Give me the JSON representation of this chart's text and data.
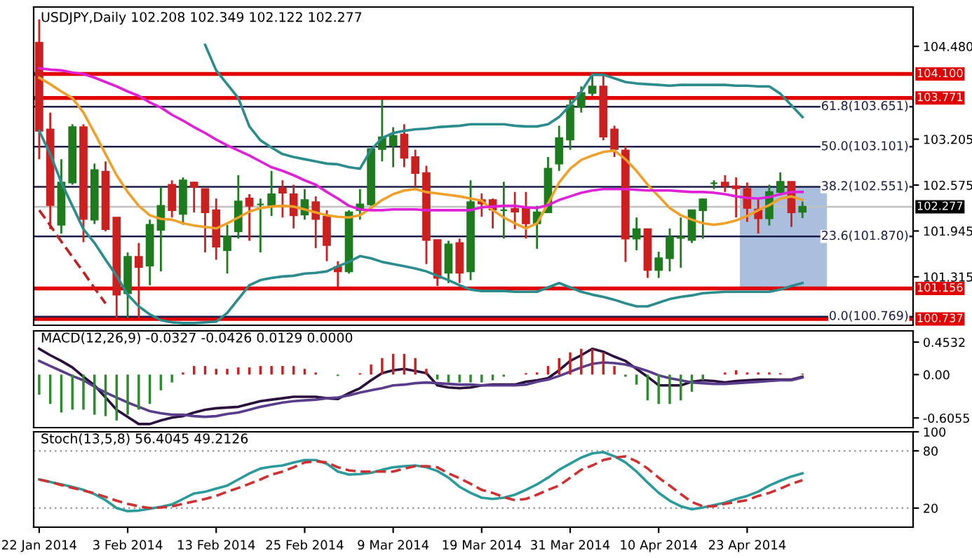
{
  "chart_data": [
    {
      "type": "candlestick",
      "title": "USDJPY,Daily 102.208 102.349 102.122 102.277",
      "categories": [
        null,
        null,
        null,
        null,
        null,
        null,
        null,
        null,
        null,
        null,
        null,
        null,
        null,
        null,
        null,
        null,
        null,
        null,
        null,
        null,
        null,
        null,
        null,
        null,
        null,
        null,
        null,
        null,
        null,
        null,
        null,
        null,
        null,
        null,
        null,
        null,
        null,
        null,
        null,
        null,
        null,
        null,
        null,
        null,
        null,
        null,
        null,
        null,
        null,
        null,
        null,
        null,
        null,
        null,
        null,
        null,
        null,
        null,
        null,
        null,
        null,
        null,
        null,
        null,
        null,
        null,
        null,
        null,
        null,
        null
      ],
      "ohlc": [
        [
          104.53,
          104.85,
          102.93,
          103.32
        ],
        [
          103.34,
          103.57,
          101.97,
          102.3
        ],
        [
          102.03,
          102.93,
          101.91,
          102.61
        ],
        [
          102.61,
          103.41,
          102.58,
          103.37
        ],
        [
          103.37,
          103.41,
          101.79,
          102.11
        ],
        [
          102.1,
          102.87,
          102.04,
          102.78
        ],
        [
          102.76,
          102.9,
          101.94,
          101.97
        ],
        [
          102.13,
          102.13,
          100.75,
          101.07
        ],
        [
          101.09,
          101.65,
          100.75,
          101.59
        ],
        [
          101.59,
          101.78,
          100.75,
          101.45
        ],
        [
          101.47,
          102.1,
          101.2,
          102.03
        ],
        [
          101.96,
          102.55,
          101.39,
          102.29
        ],
        [
          102.58,
          102.64,
          102.13,
          102.23
        ],
        [
          102.18,
          102.68,
          102.03,
          102.64
        ],
        [
          102.61,
          102.62,
          102.2,
          102.55
        ],
        [
          102.52,
          102.52,
          101.65,
          102.2
        ],
        [
          102.23,
          102.39,
          101.55,
          101.73
        ],
        [
          101.68,
          102.03,
          101.36,
          101.87
        ],
        [
          101.94,
          102.71,
          101.84,
          102.35
        ],
        [
          102.39,
          102.45,
          101.81,
          102.29
        ],
        [
          102.31,
          102.39,
          101.65,
          102.31
        ],
        [
          102.3,
          102.77,
          102.15,
          102.45
        ],
        [
          102.53,
          102.64,
          102.13,
          102.47
        ],
        [
          102.45,
          102.58,
          101.98,
          102.16
        ],
        [
          102.17,
          102.52,
          102.1,
          102.37
        ],
        [
          102.34,
          102.42,
          101.71,
          102.11
        ],
        [
          102.14,
          102.23,
          101.53,
          101.75
        ],
        [
          101.45,
          101.53,
          101.17,
          101.39
        ],
        [
          101.39,
          102.23,
          101.36,
          102.2
        ],
        [
          102.23,
          102.52,
          102.1,
          102.31
        ],
        [
          102.31,
          103.07,
          102.29,
          103.07
        ],
        [
          103.07,
          103.75,
          102.9,
          103.23
        ],
        [
          103.12,
          103.37,
          102.82,
          103.25
        ],
        [
          103.27,
          103.41,
          102.82,
          102.95
        ],
        [
          102.96,
          103.06,
          102.55,
          102.74
        ],
        [
          102.74,
          102.84,
          101.49,
          101.82
        ],
        [
          101.82,
          101.82,
          101.19,
          101.3
        ],
        [
          101.37,
          101.81,
          101.23,
          101.76
        ],
        [
          101.78,
          101.84,
          101.23,
          101.37
        ],
        [
          101.39,
          102.64,
          101.27,
          102.34
        ],
        [
          102.37,
          102.46,
          102.14,
          102.32
        ],
        [
          102.37,
          102.39,
          101.98,
          102.24
        ],
        [
          102.23,
          102.62,
          101.84,
          102.23
        ],
        [
          102.25,
          102.48,
          101.97,
          102.21
        ],
        [
          102.26,
          102.48,
          101.84,
          102.05
        ],
        [
          102.05,
          102.29,
          101.7,
          102.2
        ],
        [
          102.2,
          102.96,
          102.2,
          102.8
        ],
        [
          102.87,
          103.39,
          102.77,
          103.22
        ],
        [
          103.2,
          103.77,
          103.06,
          103.67
        ],
        [
          103.65,
          103.93,
          103.57,
          103.84
        ],
        [
          103.84,
          104.12,
          103.8,
          103.93
        ],
        [
          103.93,
          104.1,
          103.19,
          103.24
        ],
        [
          103.34,
          103.39,
          102.96,
          103.07
        ],
        [
          103.05,
          103.11,
          101.52,
          101.84
        ],
        [
          101.84,
          102.13,
          101.68,
          101.97
        ],
        [
          101.97,
          101.97,
          101.3,
          101.41
        ],
        [
          101.41,
          101.66,
          101.3,
          101.57
        ],
        [
          101.57,
          101.98,
          101.39,
          101.86
        ],
        [
          101.85,
          102.13,
          101.44,
          101.86
        ],
        [
          101.82,
          102.23,
          101.78,
          102.23
        ],
        [
          102.23,
          102.39,
          101.84,
          102.38
        ],
        [
          102.6,
          102.64,
          102.52,
          102.6
        ],
        [
          102.61,
          102.71,
          102.48,
          102.57
        ],
        [
          102.56,
          102.68,
          102.13,
          102.53
        ],
        [
          102.52,
          102.61,
          102.07,
          102.26
        ],
        [
          102.24,
          102.39,
          101.91,
          102.12
        ],
        [
          102.12,
          102.58,
          102.02,
          102.48
        ],
        [
          102.48,
          102.75,
          102.43,
          102.62
        ],
        [
          102.62,
          102.62,
          102.0,
          102.2
        ],
        [
          102.208,
          102.349,
          102.122,
          102.277
        ]
      ],
      "colors": [
        "#cc2020",
        "#cc2020",
        "#1e7b1e",
        "#1e7b1e",
        "#cc2020",
        "#1e7b1e",
        "#cc2020",
        "#cc2020",
        "#1e7b1e",
        "#cc2020",
        "#1e7b1e",
        "#1e7b1e",
        "#cc2020",
        "#1e7b1e",
        "#cc2020",
        "#cc2020",
        "#cc2020",
        "#1e7b1e",
        "#1e7b1e",
        "#cc2020",
        "#1e7b1e",
        "#1e7b1e",
        "#cc2020",
        "#cc2020",
        "#1e7b1e",
        "#cc2020",
        "#cc2020",
        "#cc2020",
        "#1e7b1e",
        "#1e7b1e",
        "#1e7b1e",
        "#1e7b1e",
        "#1e7b1e",
        "#cc2020",
        "#cc2020",
        "#cc2020",
        "#cc2020",
        "#1e7b1e",
        "#cc2020",
        "#1e7b1e",
        "#cc2020",
        "#cc2020",
        "#1e7b1e",
        "#cc2020",
        "#cc2020",
        "#1e7b1e",
        "#1e7b1e",
        "#1e7b1e",
        "#1e7b1e",
        "#1e7b1e",
        "#1e7b1e",
        "#cc2020",
        "#cc2020",
        "#cc2020",
        "#1e7b1e",
        "#cc2020",
        "#1e7b1e",
        "#1e7b1e",
        "#1e7b1e",
        "#1e7b1e",
        "#1e7b1e",
        "#1e7b1e",
        "#cc2020",
        "#cc2020",
        "#cc2020",
        "#cc2020",
        "#1e7b1e",
        "#1e7b1e",
        "#cc2020",
        "#1e7b1e"
      ],
      "series": [
        {
          "type": "line",
          "color": "#f0a028",
          "values": [
            104.05,
            103.96,
            103.86,
            103.77,
            103.57,
            103.29,
            103.0,
            102.71,
            102.48,
            102.29,
            102.16,
            102.11,
            102.1,
            102.05,
            102.02,
            102.0,
            101.98,
            102.05,
            102.13,
            102.21,
            102.26,
            102.28,
            102.29,
            102.28,
            102.24,
            102.2,
            102.16,
            102.14,
            102.13,
            102.16,
            102.26,
            102.37,
            102.45,
            102.5,
            102.52,
            102.48,
            102.46,
            102.44,
            102.42,
            102.39,
            102.36,
            102.23,
            102.13,
            102.05,
            101.98,
            102.05,
            102.32,
            102.61,
            102.8,
            102.92,
            102.98,
            103.03,
            103.05,
            102.93,
            102.77,
            102.58,
            102.42,
            102.26,
            102.16,
            102.1,
            102.05,
            102.03,
            102.05,
            102.09,
            102.15,
            102.23,
            102.3,
            102.39,
            102.42,
            102.37
          ]
        },
        {
          "type": "line",
          "color": "#e020d8",
          "values": [
            104.18,
            104.16,
            104.15,
            104.12,
            104.1,
            104.05,
            103.99,
            103.93,
            103.86,
            103.8,
            103.71,
            103.64,
            103.54,
            103.46,
            103.37,
            103.29,
            103.2,
            103.12,
            103.05,
            102.98,
            102.9,
            102.82,
            102.77,
            102.71,
            102.64,
            102.58,
            102.48,
            102.39,
            102.29,
            102.24,
            102.23,
            102.23,
            102.24,
            102.24,
            102.24,
            102.23,
            102.23,
            102.23,
            102.23,
            102.23,
            102.27,
            102.28,
            102.29,
            102.29,
            102.27,
            102.26,
            102.3,
            102.37,
            102.42,
            102.47,
            102.5,
            102.52,
            102.52,
            102.52,
            102.51,
            102.5,
            102.5,
            102.5,
            102.49,
            102.48,
            102.48,
            102.47,
            102.45,
            102.42,
            102.4,
            102.39,
            102.41,
            102.45,
            102.48,
            102.48
          ]
        },
        {
          "type": "line",
          "color": "#2a8c8c",
          "values": [
            null,
            null,
            null,
            null,
            null,
            null,
            null,
            null,
            null,
            null,
            null,
            null,
            null,
            null,
            null,
            104.5,
            104.15,
            103.96,
            103.77,
            103.38,
            103.19,
            103.09,
            103.0,
            102.96,
            102.93,
            102.9,
            102.87,
            102.86,
            102.82,
            102.8,
            103.06,
            103.22,
            103.29,
            103.32,
            103.34,
            103.35,
            103.37,
            103.38,
            103.39,
            103.41,
            103.41,
            103.41,
            103.41,
            103.39,
            103.38,
            103.38,
            103.41,
            103.51,
            103.67,
            103.86,
            104.09,
            104.09,
            104.04,
            103.99,
            103.97,
            103.96,
            103.95,
            103.94,
            103.95,
            103.95,
            103.95,
            103.95,
            103.95,
            103.94,
            103.94,
            103.93,
            103.93,
            103.83,
            103.67,
            103.51
          ]
        },
        {
          "type": "line",
          "color": "#2a8c8c",
          "values": [
            103.32,
            103.0,
            102.61,
            102.29,
            101.97,
            101.78,
            101.55,
            101.33,
            101.07,
            100.91,
            100.8,
            100.72,
            100.69,
            100.68,
            100.68,
            100.69,
            100.7,
            100.82,
            101.01,
            101.2,
            101.27,
            101.3,
            101.32,
            101.33,
            101.36,
            101.37,
            101.39,
            101.46,
            101.52,
            101.6,
            101.57,
            101.52,
            101.49,
            101.46,
            101.43,
            101.39,
            101.33,
            101.27,
            101.2,
            101.14,
            101.12,
            101.12,
            101.12,
            101.11,
            101.11,
            101.11,
            101.17,
            101.23,
            101.17,
            101.11,
            101.07,
            101.04,
            101.0,
            100.95,
            100.91,
            100.91,
            100.96,
            101.01,
            101.04,
            101.06,
            101.09,
            101.1,
            101.11,
            101.11,
            101.11,
            101.11,
            101.11,
            101.14,
            101.19,
            101.23
          ]
        },
        {
          "type": "line",
          "color": "#c02020",
          "line_style": "dashed",
          "values": [
            102.23,
            102.02,
            101.8,
            101.59,
            101.38,
            101.16,
            100.95,
            null,
            null,
            null,
            null,
            null,
            null,
            null,
            null,
            null,
            null,
            null,
            null,
            null,
            null,
            null,
            null,
            null,
            null,
            null,
            null,
            null,
            null,
            null,
            null,
            null,
            null,
            null,
            null,
            null,
            null,
            null,
            null,
            null,
            null,
            null,
            null,
            null,
            null,
            null,
            null,
            null,
            null,
            null,
            null,
            null,
            null,
            null,
            null,
            null,
            null,
            null,
            null,
            null,
            null,
            null,
            null,
            null,
            null,
            null,
            null,
            null,
            null,
            null
          ]
        }
      ],
      "ylim": [
        100.65,
        105.02
      ],
      "yticks": [
        {
          "value": 104.48,
          "label": "104.480"
        },
        {
          "value": 103.205,
          "label": "103.205"
        },
        {
          "value": 102.575,
          "label": "102.575"
        },
        {
          "value": 101.945,
          "label": "101.945"
        },
        {
          "value": 101.315,
          "label": "101.315"
        }
      ],
      "ref_lines": [
        {
          "axis": "y",
          "value": 104.1,
          "label": "104.100",
          "color": "#e00000"
        },
        {
          "axis": "y",
          "value": 103.771,
          "label": "103.771",
          "color": "#e00000"
        },
        {
          "axis": "y",
          "value": 101.156,
          "label": "101.156",
          "color": "#e00000"
        },
        {
          "axis": "y",
          "value": 100.737,
          "label": "100.737",
          "color": "#e00000"
        },
        {
          "axis": "y",
          "value": 103.651,
          "color": "#1c1c48"
        },
        {
          "axis": "y",
          "value": 103.101,
          "color": "#1c1c48"
        },
        {
          "axis": "y",
          "value": 102.551,
          "color": "#1c1c48"
        },
        {
          "axis": "y",
          "value": 101.87,
          "color": "#1c1c48"
        },
        {
          "axis": "y",
          "value": 100.769,
          "color": "#1c1c48"
        },
        {
          "axis": "y",
          "value": 102.277,
          "label": "102.277",
          "color": "#c0c0c0"
        }
      ],
      "bands": [
        {
          "axis": "y",
          "from": 101.156,
          "to": 102.551,
          "color": "#aabfdd"
        }
      ],
      "annotations": [
        {
          "text": "61.8(103.651)",
          "y": 103.651
        },
        {
          "text": "50.0(103.101)",
          "y": 103.101
        },
        {
          "text": "38.2(102.551)",
          "y": 102.551
        },
        {
          "text": "23.6(101.870)",
          "y": 101.87
        },
        {
          "text": "0.0(100.769)",
          "y": 100.769
        }
      ],
      "tick_labels": "y"
    },
    {
      "type": "bar",
      "title": "MACD(12,26,9) -0.0327 -0.0426 0.0129 0.0000",
      "categories": [
        null,
        null,
        null,
        null,
        null,
        null,
        null,
        null,
        null,
        null,
        null,
        null,
        null,
        null,
        null,
        null,
        null,
        null,
        null,
        null,
        null,
        null,
        null,
        null,
        null,
        null,
        null,
        null,
        null,
        null,
        null,
        null,
        null,
        null,
        null,
        null,
        null,
        null,
        null,
        null,
        null,
        null,
        null,
        null,
        null,
        null,
        null,
        null,
        null,
        null,
        null,
        null,
        null,
        null,
        null,
        null,
        null,
        null,
        null,
        null,
        null,
        null,
        null,
        null,
        null,
        null,
        null,
        null,
        null,
        null
      ],
      "series": [
        {
          "type": "bar",
          "colors": [
            "#2e8b2e",
            "#2e8b2e",
            "#2e8b2e",
            "#2e8b2e",
            "#2e8b2e",
            "#2e8b2e",
            "#2e8b2e",
            "#2e8b2e",
            "#2e8b2e",
            "#2e8b2e",
            "#2e8b2e",
            "#2e8b2e",
            "#2e8b2e",
            "#cc2020",
            "#cc2020",
            "#cc2020",
            "#cc2020",
            "#cc2020",
            "#cc2020",
            "#cc2020",
            "#cc2020",
            "#cc2020",
            "#cc2020",
            "#cc2020",
            "#cc2020",
            "#cc2020",
            "#cc2020",
            "#2e8b2e",
            "#cc2020",
            "#cc2020",
            "#cc2020",
            "#cc2020",
            "#cc2020",
            "#cc2020",
            "#cc2020",
            "#cc2020",
            "#2e8b2e",
            "#2e8b2e",
            "#2e8b2e",
            "#2e8b2e",
            "#2e8b2e",
            "#2e8b2e",
            "#2e8b2e",
            "#cc2020",
            "#cc2020",
            "#cc2020",
            "#cc2020",
            "#cc2020",
            "#cc2020",
            "#cc2020",
            "#cc2020",
            "#cc2020",
            "#cc2020",
            "#2e8b2e",
            "#2e8b2e",
            "#2e8b2e",
            "#2e8b2e",
            "#2e8b2e",
            "#2e8b2e",
            "#2e8b2e",
            "#2e8b2e",
            "#cc2020",
            "#cc2020",
            "#cc2020",
            "#cc2020",
            "#cc2020",
            "#cc2020",
            "#cc2020",
            "#cc2020",
            "#cc2020"
          ],
          "values": [
            -0.28,
            -0.41,
            -0.53,
            -0.49,
            -0.49,
            -0.56,
            -0.58,
            -0.64,
            -0.56,
            -0.49,
            -0.41,
            -0.22,
            -0.11,
            0.03,
            0.12,
            0.12,
            0.08,
            0.08,
            0.1,
            0.1,
            0.12,
            0.12,
            0.12,
            0.12,
            0.08,
            0.03,
            0.0,
            -0.02,
            0.0,
            0.02,
            0.14,
            0.23,
            0.29,
            0.29,
            0.23,
            0.08,
            -0.07,
            -0.11,
            -0.11,
            -0.11,
            -0.11,
            -0.08,
            -0.03,
            0.0,
            0.02,
            0.03,
            0.12,
            0.23,
            0.31,
            0.36,
            0.36,
            0.31,
            0.12,
            -0.03,
            -0.14,
            -0.36,
            -0.41,
            -0.41,
            -0.36,
            -0.24,
            -0.08,
            0.0,
            0.03,
            0.06,
            0.03,
            0.03,
            0.03,
            0.02,
            0.0,
            0.0129
          ]
        },
        {
          "type": "line",
          "color": "#2a0f3c",
          "values": [
            0.36,
            0.27,
            0.19,
            0.1,
            -0.03,
            -0.15,
            -0.32,
            -0.49,
            -0.59,
            -0.69,
            -0.69,
            -0.64,
            -0.6,
            -0.58,
            -0.53,
            -0.49,
            -0.47,
            -0.46,
            -0.45,
            -0.41,
            -0.37,
            -0.35,
            -0.33,
            -0.31,
            -0.31,
            -0.31,
            -0.33,
            -0.34,
            -0.26,
            -0.19,
            -0.08,
            0.02,
            0.06,
            0.08,
            0.05,
            0.02,
            -0.15,
            -0.18,
            -0.19,
            -0.18,
            -0.15,
            -0.14,
            -0.14,
            -0.14,
            -0.1,
            -0.08,
            -0.05,
            0.06,
            0.19,
            0.27,
            0.36,
            0.32,
            0.25,
            0.19,
            0.08,
            -0.03,
            -0.15,
            -0.15,
            -0.15,
            -0.1,
            -0.08,
            -0.09,
            -0.11,
            -0.09,
            -0.08,
            -0.07,
            -0.07,
            -0.07,
            -0.07,
            -0.03
          ]
        },
        {
          "type": "line",
          "color": "#5a3c8c",
          "values": [
            0.19,
            0.12,
            0.05,
            -0.02,
            -0.08,
            -0.17,
            -0.25,
            -0.32,
            -0.39,
            -0.45,
            -0.51,
            -0.54,
            -0.56,
            -0.56,
            -0.58,
            -0.59,
            -0.58,
            -0.55,
            -0.53,
            -0.49,
            -0.45,
            -0.42,
            -0.39,
            -0.37,
            -0.36,
            -0.35,
            -0.33,
            -0.32,
            -0.29,
            -0.25,
            -0.22,
            -0.19,
            -0.15,
            -0.14,
            -0.12,
            -0.11,
            -0.12,
            -0.13,
            -0.14,
            -0.14,
            -0.15,
            -0.15,
            -0.15,
            -0.15,
            -0.14,
            -0.1,
            -0.07,
            -0.02,
            0.04,
            0.1,
            0.15,
            0.17,
            0.16,
            0.14,
            0.1,
            0.05,
            -0.01,
            -0.05,
            -0.08,
            -0.11,
            -0.12,
            -0.13,
            -0.13,
            -0.12,
            -0.11,
            -0.1,
            -0.09,
            -0.08,
            -0.08,
            -0.04
          ]
        }
      ],
      "ylim": [
        -0.74,
        0.61
      ],
      "yticks": [
        0.4532,
        {
          "value": 0,
          "label": "0.00"
        },
        -0.6055
      ],
      "tick_labels": "y"
    },
    {
      "type": "line",
      "title": "Stoch(13,5,8) 56.4045 49.2126",
      "categories": [
        "22 Jan 2014",
        null,
        null,
        null,
        null,
        null,
        null,
        null,
        "3 Feb 2014",
        null,
        null,
        null,
        null,
        null,
        null,
        null,
        "13 Feb 2014",
        null,
        null,
        null,
        null,
        null,
        null,
        null,
        "25 Feb 2014",
        null,
        null,
        null,
        null,
        null,
        null,
        null,
        "9 Mar 2014",
        null,
        null,
        null,
        null,
        null,
        null,
        null,
        "19 Mar 2014",
        null,
        null,
        null,
        null,
        null,
        null,
        null,
        "31 Mar 2014",
        null,
        null,
        null,
        null,
        null,
        null,
        null,
        "10 Apr 2014",
        null,
        null,
        null,
        null,
        null,
        null,
        null,
        "23 Apr 2014",
        null,
        null,
        null,
        null,
        null
      ],
      "series": [
        {
          "type": "line",
          "color": "#2a9a9a",
          "values": [
            50.0,
            47.4,
            44.9,
            42.3,
            39.1,
            34.7,
            28.3,
            20.0,
            16.8,
            17.4,
            19.4,
            21.3,
            23.8,
            29.6,
            35.3,
            37.2,
            40.4,
            43.6,
            50.0,
            56.4,
            61.5,
            63.4,
            64.7,
            67.9,
            70.4,
            70.4,
            66.6,
            58.3,
            55.1,
            55.7,
            57.0,
            60.2,
            62.8,
            64.0,
            64.7,
            62.8,
            58.9,
            51.9,
            42.3,
            36.0,
            30.9,
            29.6,
            30.9,
            34.0,
            39.1,
            44.9,
            51.9,
            60.2,
            66.6,
            73.0,
            77.4,
            78.7,
            74.3,
            67.9,
            58.3,
            46.8,
            36.0,
            27.7,
            21.9,
            18.7,
            20.6,
            23.2,
            25.7,
            29.6,
            32.8,
            37.2,
            43.6,
            48.7,
            53.2,
            56.4
          ]
        },
        {
          "type": "line",
          "color": "#d03030",
          "line_style": "dashed",
          "values": [
            50.0,
            47.4,
            44.2,
            41.1,
            38.5,
            35.5,
            31.7,
            27.7,
            24.5,
            21.9,
            20.0,
            20.6,
            21.9,
            24.5,
            27.0,
            29.6,
            32.8,
            37.2,
            41.1,
            45.5,
            50.0,
            55.1,
            58.3,
            62.8,
            67.9,
            69.1,
            67.9,
            62.8,
            59.6,
            58.3,
            58.3,
            58.3,
            58.3,
            61.5,
            64.0,
            64.0,
            62.8,
            56.4,
            51.3,
            45.5,
            39.1,
            35.9,
            31.5,
            28.3,
            29.6,
            34.0,
            39.1,
            43.6,
            51.9,
            60.2,
            64.7,
            70.4,
            73.0,
            74.3,
            69.1,
            61.5,
            51.9,
            43.6,
            34.7,
            26.4,
            21.9,
            21.9,
            24.5,
            26.4,
            28.3,
            32.8,
            35.9,
            40.4,
            45.5,
            49.2
          ]
        }
      ],
      "ylim": [
        0,
        100
      ],
      "yticks": [
        100,
        80,
        20
      ],
      "ref_lines": [
        {
          "axis": "y",
          "value": 80,
          "color": "#a0a0a0",
          "line_style": "dotted"
        },
        {
          "axis": "y",
          "value": 20,
          "color": "#a0a0a0",
          "line_style": "dotted"
        }
      ]
    }
  ]
}
